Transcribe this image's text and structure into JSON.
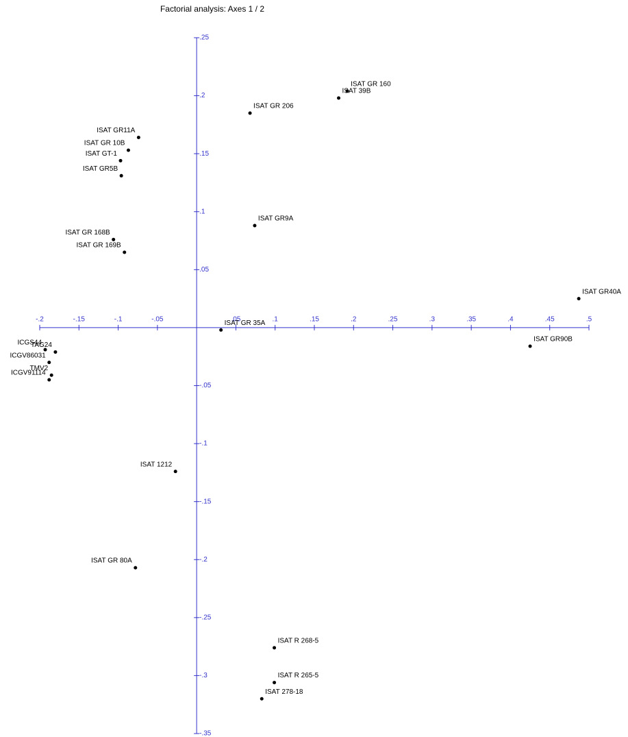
{
  "chart_data": {
    "type": "scatter",
    "title": "Factorial analysis: Axes 1 / 2",
    "labels": [
      "ISAT GR 160",
      "ISAT 39B",
      "ISAT GR 206",
      "ISAT GR11A",
      "ISAT GR 10B",
      "ISAT GT-1",
      "ISAT GR5B",
      "ISAT GR9A",
      "ISAT GR 168B",
      "ISAT GR 169B",
      "ISAT GR40A",
      "ISAT GR 35A",
      "ISAT GR90B",
      "ICGS44",
      "TAG24",
      "ICGV86031",
      "TMV2",
      "ICGV91114",
      "ISAT 1212",
      "ISAT GR 80A",
      "ISAT R 268-5",
      "ISAT R 265-5",
      "ISAT 278-18"
    ],
    "x": [
      0.192,
      0.181,
      0.068,
      -0.074,
      -0.087,
      -0.097,
      -0.096,
      0.074,
      -0.106,
      -0.092,
      0.487,
      0.031,
      0.425,
      -0.193,
      -0.18,
      -0.188,
      -0.185,
      -0.188,
      -0.027,
      -0.078,
      0.099,
      0.099,
      0.083
    ],
    "y": [
      0.204,
      0.198,
      0.185,
      0.164,
      0.153,
      0.144,
      0.131,
      0.088,
      0.076,
      0.065,
      0.025,
      -0.002,
      -0.016,
      -0.019,
      -0.021,
      -0.03,
      -0.041,
      -0.045,
      -0.124,
      -0.207,
      -0.276,
      -0.306,
      -0.32
    ],
    "color": "#000000",
    "axis_color": "#3333cc",
    "xlim": [
      -0.2,
      0.5
    ],
    "ylim": [
      -0.35,
      0.25
    ],
    "xticks": [
      {
        "value": -0.2,
        "label": "-.2"
      },
      {
        "value": -0.15,
        "label": "-.15"
      },
      {
        "value": -0.1,
        "label": "-.1"
      },
      {
        "value": -0.05,
        "label": "-.05"
      },
      {
        "value": 0.05,
        "label": ".05"
      },
      {
        "value": 0.1,
        "label": ".1"
      },
      {
        "value": 0.15,
        "label": ".15"
      },
      {
        "value": 0.2,
        "label": ".2"
      },
      {
        "value": 0.25,
        "label": ".25"
      },
      {
        "value": 0.3,
        "label": ".3"
      },
      {
        "value": 0.35,
        "label": ".35"
      },
      {
        "value": 0.4,
        "label": ".4"
      },
      {
        "value": 0.45,
        "label": ".45"
      },
      {
        "value": 0.5,
        "label": ".5"
      }
    ],
    "yticks": [
      {
        "value": 0.25,
        "label": ".25"
      },
      {
        "value": 0.2,
        "label": ".2"
      },
      {
        "value": 0.15,
        "label": ".15"
      },
      {
        "value": 0.1,
        "label": ".1"
      },
      {
        "value": 0.05,
        "label": ".05"
      },
      {
        "value": -0.05,
        "label": "-.05"
      },
      {
        "value": -0.1,
        "label": "-.1"
      },
      {
        "value": -0.15,
        "label": "-.15"
      },
      {
        "value": -0.2,
        "label": "-.2"
      },
      {
        "value": -0.25,
        "label": "-.25"
      },
      {
        "value": -0.3,
        "label": "-.3"
      },
      {
        "value": -0.35,
        "label": "-.35"
      }
    ]
  }
}
